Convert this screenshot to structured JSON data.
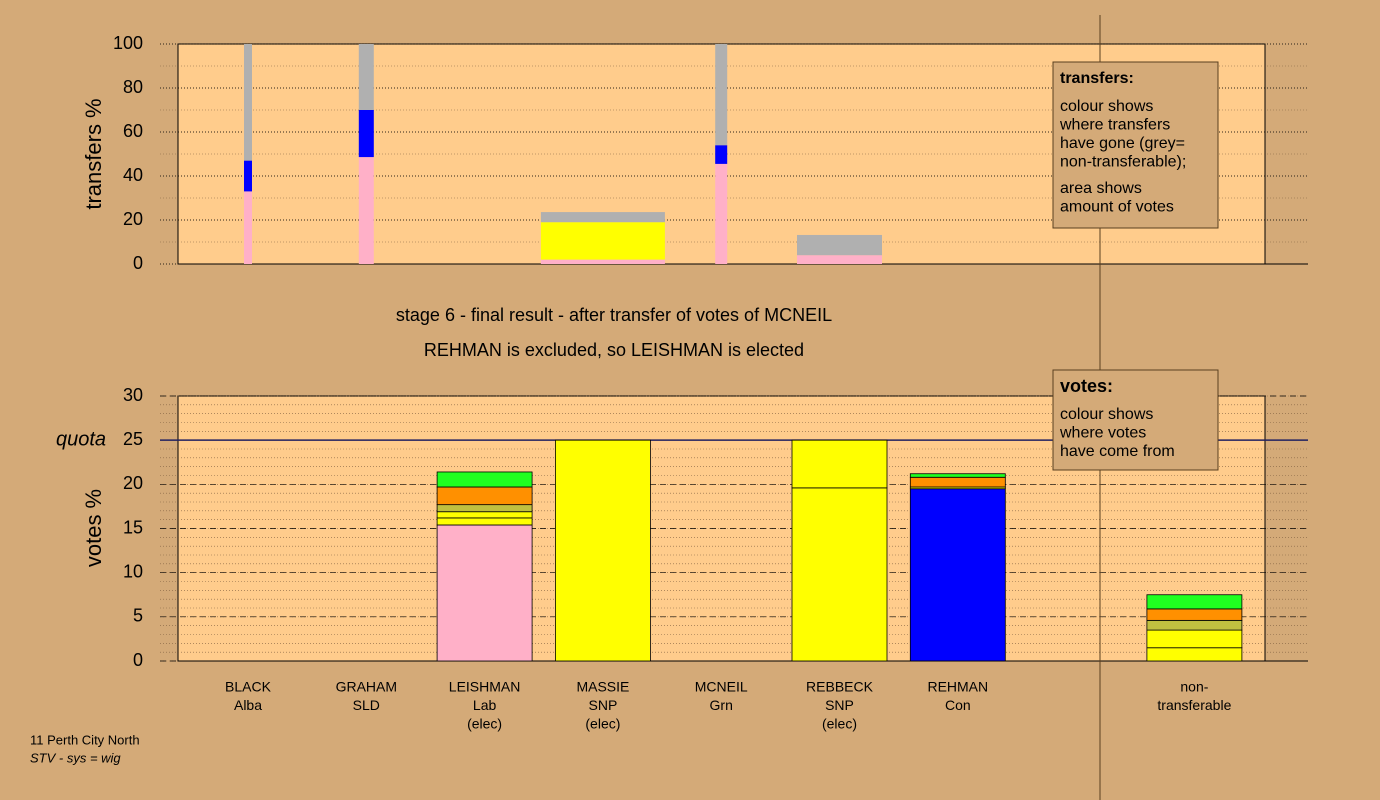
{
  "chart_data": [
    {
      "type": "stacked-bar",
      "ylabel": "transfers %",
      "ylim": [
        0,
        100
      ],
      "yticks": [
        0,
        20,
        40,
        60,
        80,
        100
      ],
      "minor_step": 10,
      "stacks": [
        {
          "width": 8,
          "segments": [
            {
              "value": 33,
              "color": "#ffb0c8"
            },
            {
              "value": 14,
              "color": "#0000ff"
            },
            {
              "value": 53,
              "color": "#b0b0b0"
            }
          ]
        },
        {
          "width": 15,
          "segments": [
            {
              "value": 48.6,
              "color": "#ffb0c8"
            },
            {
              "value": 21.4,
              "color": "#0000ff"
            },
            {
              "value": 30,
              "color": "#b0b0b0"
            }
          ]
        },
        null,
        {
          "width": 124,
          "segments": [
            {
              "value": 2,
              "color": "#ffb0c8"
            },
            {
              "value": 17,
              "color": "#ffff00"
            },
            {
              "value": 4.6,
              "color": "#b0b0b0"
            }
          ]
        },
        {
          "width": 12,
          "segments": [
            {
              "value": 45.5,
              "color": "#ffb0c8"
            },
            {
              "value": 8.5,
              "color": "#0000ff"
            },
            {
              "value": 46,
              "color": "#b0b0b0"
            }
          ]
        },
        {
          "width": 85,
          "segments": [
            {
              "value": 4,
              "color": "#ffb0c8"
            },
            {
              "value": 9.2,
              "color": "#b0b0b0"
            }
          ]
        },
        null,
        null,
        null
      ],
      "legend": {
        "title": "transfers:",
        "lines": [
          "colour shows",
          "where transfers",
          "have gone (grey=",
          "non-transferable);"
        ],
        "lines2": [
          "area shows",
          "amount of votes"
        ]
      }
    },
    {
      "type": "stacked-bar",
      "title": "stage 6 - final result - after transfer of votes of MCNEIL",
      "subtitle": "REHMAN is excluded, so LEISHMAN is elected",
      "ylabel": "votes %",
      "ylim": [
        0,
        30
      ],
      "yticks": [
        0,
        5,
        10,
        15,
        20,
        25,
        30
      ],
      "minor_step": 1,
      "quota": 25,
      "quota_label": "quota",
      "categories": [
        [
          "BLACK",
          "Alba"
        ],
        [
          "GRAHAM",
          "SLD"
        ],
        [
          "LEISHMAN",
          "Lab",
          "(elec)"
        ],
        [
          "MASSIE",
          "SNP",
          "(elec)"
        ],
        [
          "MCNEIL",
          "Grn"
        ],
        [
          "REBBECK",
          "SNP",
          "(elec)"
        ],
        [
          "REHMAN",
          "Con"
        ],
        null,
        [
          "non-",
          "transferable"
        ]
      ],
      "stacks": [
        [
          {
            "value": 0,
            "color": "#ffb0c8"
          }
        ],
        [
          {
            "value": 0,
            "color": "#ffb0c8"
          }
        ],
        [
          {
            "value": 15.4,
            "color": "#ffb0c8"
          },
          {
            "value": 0.8,
            "color": "#ffff00"
          },
          {
            "value": 0.7,
            "color": "#ffff00"
          },
          {
            "value": 0.8,
            "color": "#c0c040"
          },
          {
            "value": 2.0,
            "color": "#ff9000"
          },
          {
            "value": 1.7,
            "color": "#20ff20"
          }
        ],
        [
          {
            "value": 25,
            "color": "#ffff00"
          }
        ],
        [
          {
            "value": 0,
            "color": "#ffb0c8"
          }
        ],
        [
          {
            "value": 19.6,
            "color": "#ffff00"
          },
          {
            "value": 5.4,
            "color": "#ffff00"
          }
        ],
        [
          {
            "value": 19.5,
            "color": "#0000ff"
          },
          {
            "value": 0.2,
            "color": "#ffff00"
          },
          {
            "value": 1.1,
            "color": "#ff9000"
          },
          {
            "value": 0.4,
            "color": "#20ff20"
          }
        ],
        null,
        [
          {
            "value": 1.5,
            "color": "#ffff00"
          },
          {
            "value": 2.0,
            "color": "#ffff00"
          },
          {
            "value": 1.1,
            "color": "#c0c040"
          },
          {
            "value": 1.3,
            "color": "#ff9000"
          },
          {
            "value": 1.6,
            "color": "#20ff20"
          }
        ]
      ],
      "legend": {
        "title": "votes:",
        "lines": [
          "colour shows",
          "where votes",
          "have come from"
        ]
      }
    }
  ],
  "footer": {
    "line1": "11 Perth City North",
    "line2": "STV - sys = wig"
  }
}
